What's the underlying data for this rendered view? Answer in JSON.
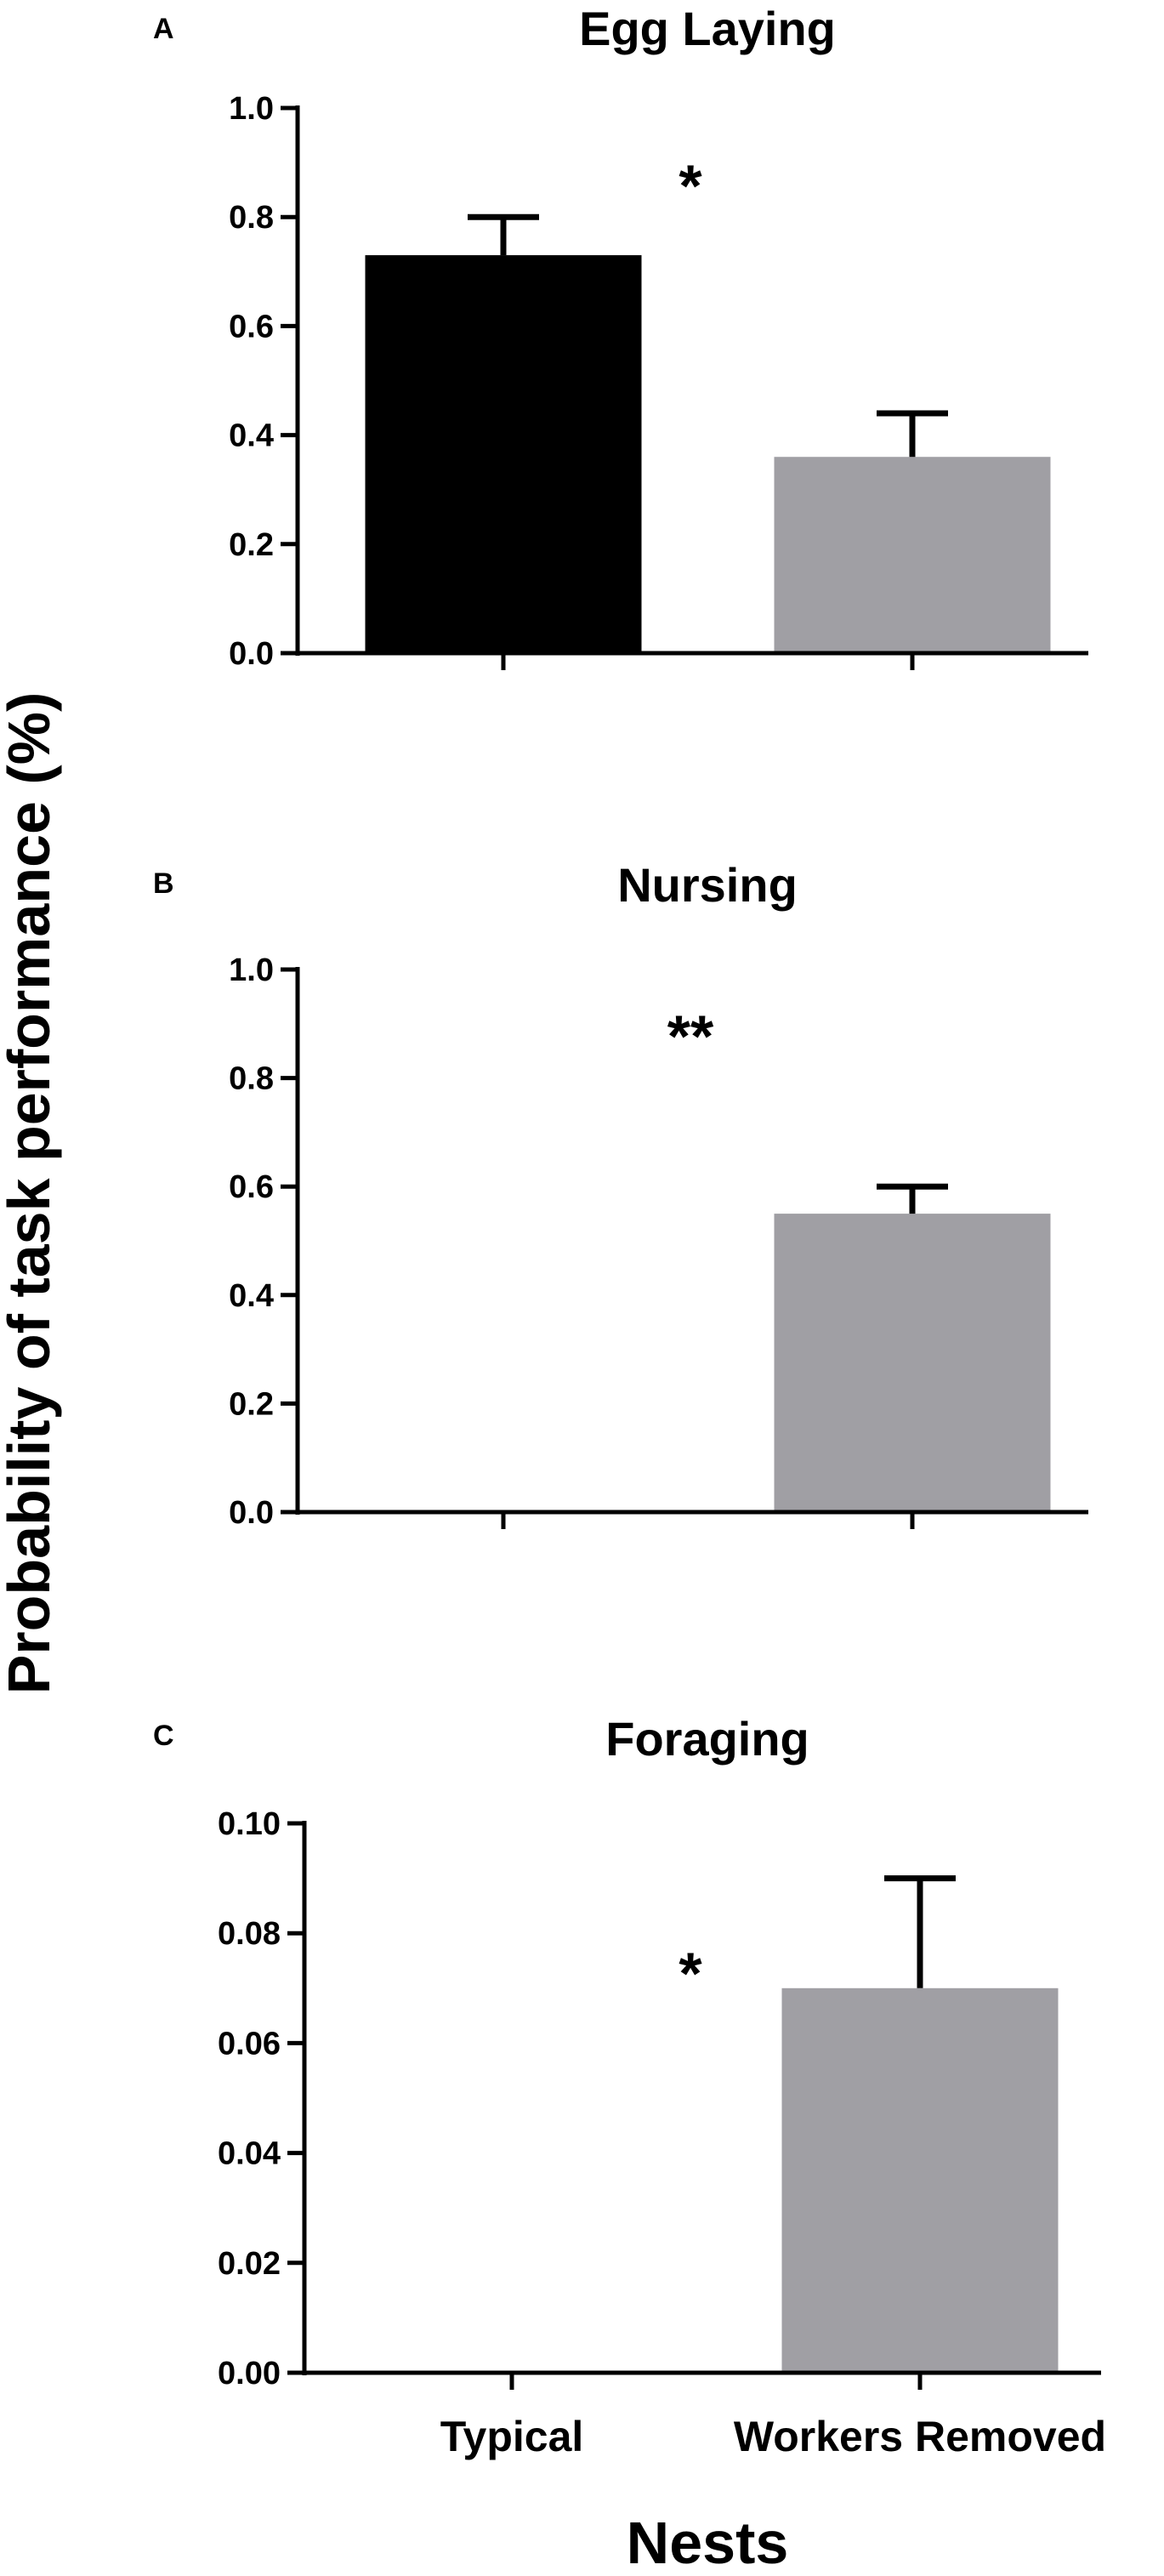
{
  "axes": {
    "ylabel": "Probability of task performance (%)",
    "xlabel": "Nests"
  },
  "colors": {
    "typical": "#000000",
    "workers_removed": "#a09fa4",
    "axis": "#000000"
  },
  "chart_data": [
    {
      "type": "bar",
      "panel": "A",
      "title": "Egg Laying",
      "categories": [
        "Typical",
        "Workers Removed"
      ],
      "values": [
        0.73,
        0.36
      ],
      "errors": [
        0.07,
        0.08
      ],
      "ylim": [
        0,
        1.0
      ],
      "yticks": [
        "0.0",
        "0.2",
        "0.4",
        "0.6",
        "0.8",
        "1.0"
      ],
      "significance": "*",
      "significance_y": 0.86
    },
    {
      "type": "bar",
      "panel": "B",
      "title": "Nursing",
      "categories": [
        "Typical",
        "Workers Removed"
      ],
      "values": [
        0.0,
        0.55
      ],
      "errors": [
        0.0,
        0.05
      ],
      "ylim": [
        0,
        1.0
      ],
      "yticks": [
        "0.0",
        "0.2",
        "0.4",
        "0.6",
        "0.8",
        "1.0"
      ],
      "significance": "**",
      "significance_y": 0.88
    },
    {
      "type": "bar",
      "panel": "C",
      "title": "Foraging",
      "categories": [
        "Typical",
        "Workers Removed"
      ],
      "values": [
        0.0,
        0.07
      ],
      "errors": [
        0.0,
        0.02
      ],
      "ylim": [
        0,
        0.1
      ],
      "yticks": [
        "0.00",
        "0.02",
        "0.04",
        "0.06",
        "0.08",
        "0.10"
      ],
      "significance": "*",
      "significance_y": 0.073
    }
  ]
}
